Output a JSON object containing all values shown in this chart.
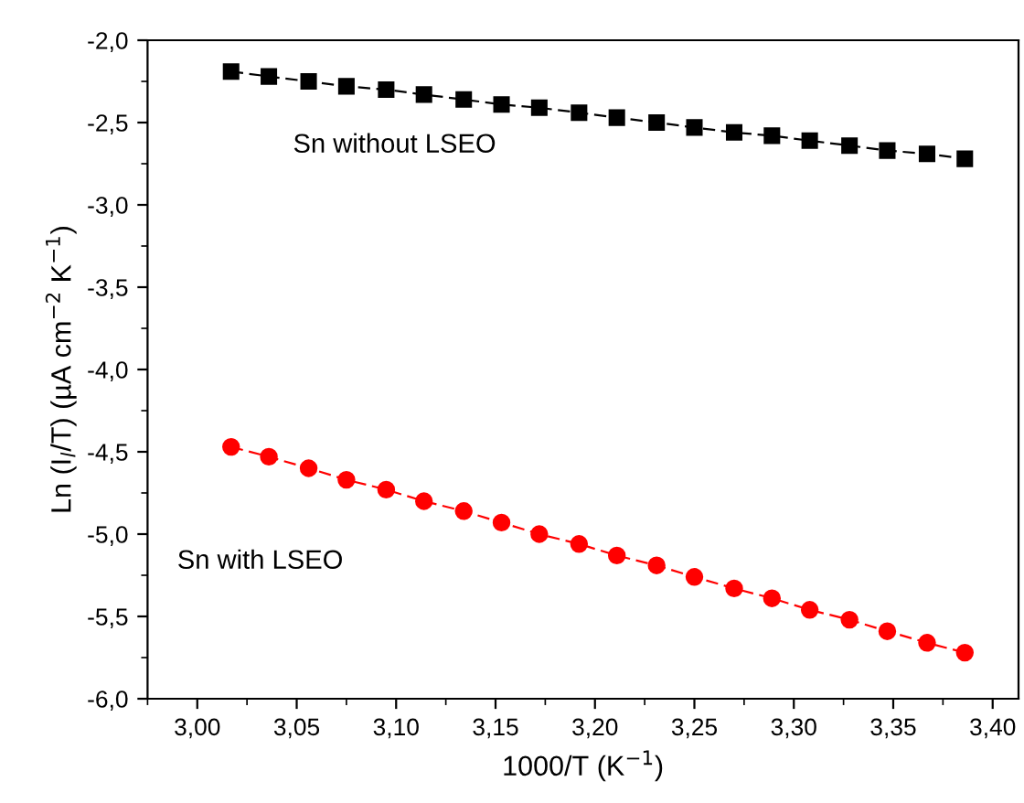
{
  "chart_data": {
    "type": "line",
    "xlabel": "1000/T (K$^{−1}$)",
    "ylabel": "Ln (I$_{l}$/T) (µA cm$^{−2}$ K$^{−1}$)",
    "x": [
      3.017,
      3.036,
      3.056,
      3.075,
      3.095,
      3.114,
      3.134,
      3.153,
      3.172,
      3.192,
      3.211,
      3.231,
      3.25,
      3.27,
      3.289,
      3.308,
      3.328,
      3.347,
      3.367,
      3.386
    ],
    "series": [
      {
        "name": "Sn without LSEO",
        "color": "#000000",
        "marker": "square",
        "values": [
          -2.19,
          -2.22,
          -2.25,
          -2.28,
          -2.3,
          -2.33,
          -2.36,
          -2.39,
          -2.41,
          -2.44,
          -2.47,
          -2.5,
          -2.53,
          -2.56,
          -2.58,
          -2.61,
          -2.64,
          -2.67,
          -2.69,
          -2.72
        ]
      },
      {
        "name": "Sn with LSEO",
        "color": "#ff0000",
        "marker": "circle",
        "values": [
          -4.47,
          -4.53,
          -4.6,
          -4.67,
          -4.73,
          -4.8,
          -4.86,
          -4.93,
          -5.0,
          -5.06,
          -5.13,
          -5.19,
          -5.26,
          -5.33,
          -5.39,
          -5.46,
          -5.52,
          -5.59,
          -5.66,
          -5.72
        ]
      }
    ],
    "line_style": "dashed",
    "grid": false,
    "legend": false,
    "xlim": [
      2.975,
      3.413
    ],
    "ylim": [
      -6.0,
      -2.0
    ],
    "xticks": [
      {
        "value": 3.0,
        "label": "3,00"
      },
      {
        "value": 3.05,
        "label": "3,05"
      },
      {
        "value": 3.1,
        "label": "3,10"
      },
      {
        "value": 3.15,
        "label": "3,15"
      },
      {
        "value": 3.2,
        "label": "3,20"
      },
      {
        "value": 3.25,
        "label": "3,25"
      },
      {
        "value": 3.3,
        "label": "3,30"
      },
      {
        "value": 3.35,
        "label": "3,35"
      },
      {
        "value": 3.4,
        "label": "3,40"
      }
    ],
    "yticks": [
      {
        "value": -6.0,
        "label": "-6,0"
      },
      {
        "value": -5.5,
        "label": "-5,5"
      },
      {
        "value": -5.0,
        "label": "-5,0"
      },
      {
        "value": -4.5,
        "label": "-4,5"
      },
      {
        "value": -4.0,
        "label": "-4,0"
      },
      {
        "value": -3.5,
        "label": "-3,5"
      },
      {
        "value": -3.0,
        "label": "-3,0"
      },
      {
        "value": -2.5,
        "label": "-2,5"
      },
      {
        "value": -2.0,
        "label": "-2,0"
      }
    ]
  }
}
